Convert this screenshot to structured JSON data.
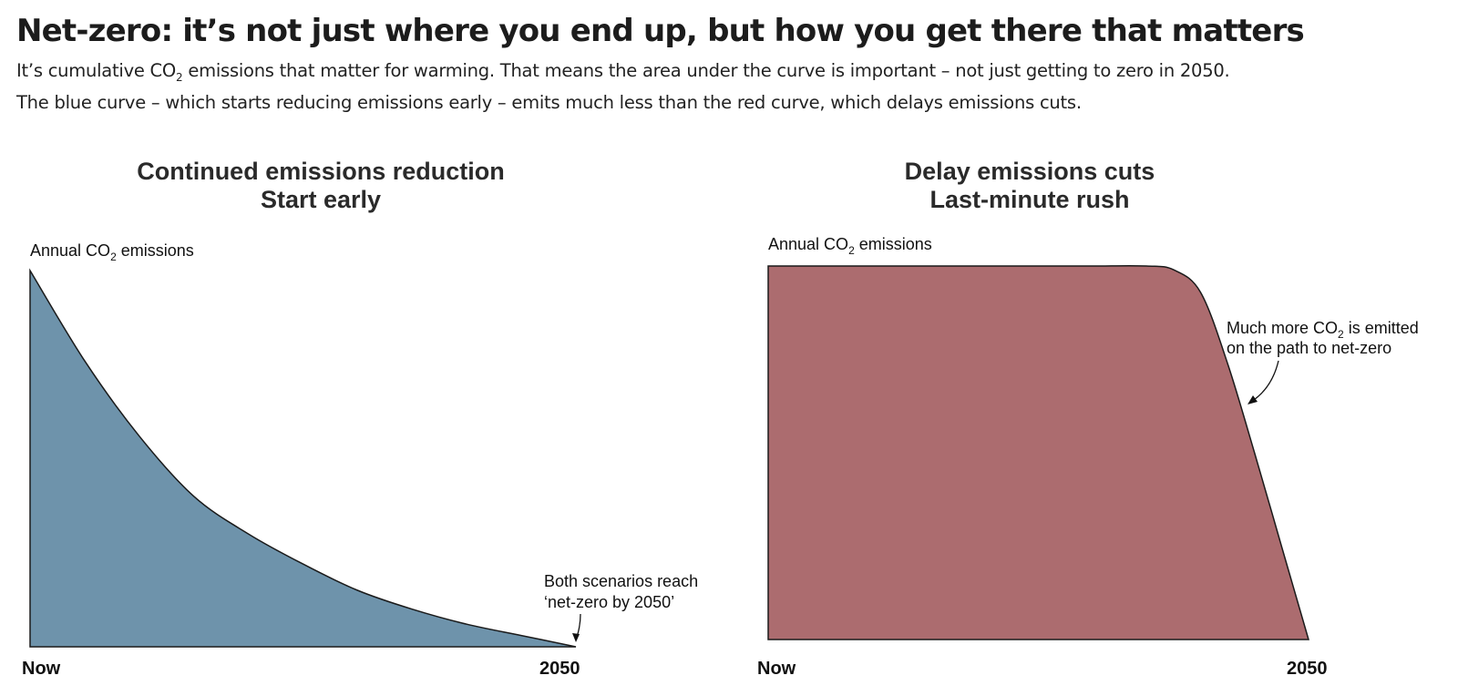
{
  "header": {
    "title": "Net-zero: it’s not just where you end up, but how you get there that matters",
    "subtitle_line1_pre": "It’s cumulative CO",
    "subtitle_line1_sub": "2",
    "subtitle_line1_post": " emissions that matter for warming. That means the area under the curve is important – not just getting to zero in 2050.",
    "subtitle_line2": "The blue curve – which starts reducing emissions early – emits much less than the red curve, which delays emissions cuts."
  },
  "colors": {
    "early": "#6e93ab",
    "delay": "#ac6c6f",
    "outline": "#1a1a1a"
  },
  "chart_data": [
    {
      "type": "area",
      "title_line1": "Continued emissions reduction",
      "title_line2": "Start early",
      "ylabel_pre": "Annual CO",
      "ylabel_sub": "2",
      "ylabel_post": " emissions",
      "x_ticks": [
        "Now",
        "2050"
      ],
      "x": [
        0,
        0.1,
        0.2,
        0.3,
        0.4,
        0.5,
        0.6,
        0.7,
        0.8,
        0.9,
        1.0
      ],
      "values": [
        1.0,
        0.76,
        0.56,
        0.4,
        0.3,
        0.22,
        0.15,
        0.1,
        0.06,
        0.03,
        0.0
      ],
      "ylim": [
        0,
        1
      ],
      "annotation_line1": "Both scenarios reach",
      "annotation_line2": "‘net-zero by 2050’"
    },
    {
      "type": "area",
      "title_line1": "Delay emissions cuts",
      "title_line2": "Last-minute rush",
      "ylabel_pre": "Annual CO",
      "ylabel_sub": "2",
      "ylabel_post": " emissions",
      "x_ticks": [
        "Now",
        "2050"
      ],
      "x": [
        0,
        0.1,
        0.2,
        0.3,
        0.4,
        0.5,
        0.6,
        0.7,
        0.75,
        0.8,
        0.85,
        0.9,
        0.95,
        1.0
      ],
      "values": [
        1.0,
        1.0,
        1.0,
        1.0,
        1.0,
        1.0,
        1.0,
        1.0,
        0.99,
        0.93,
        0.74,
        0.5,
        0.25,
        0.0
      ],
      "ylim": [
        0,
        1
      ],
      "annotation_line1_pre": "Much more CO",
      "annotation_line1_sub": "2",
      "annotation_line1_post": " is emitted",
      "annotation_line2": "on the path to net-zero"
    }
  ]
}
